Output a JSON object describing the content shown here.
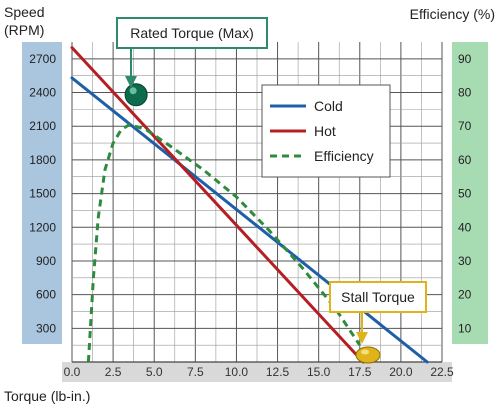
{
  "chart_data": {
    "type": "line",
    "title": "",
    "xlabel": "Torque (lb-in.)",
    "ylabel_left_line1": "Speed",
    "ylabel_left_line2": "(RPM)",
    "ylabel_right": "Efficiency (%)",
    "xlim": [
      0,
      22.5
    ],
    "ylim_left": [
      0,
      2850
    ],
    "ylim_right": [
      0,
      95
    ],
    "xticks": [
      "0.0",
      "2.5",
      "5.0",
      "7.5",
      "10.0",
      "12.5",
      "15.0",
      "17.5",
      "20.0",
      "22.5"
    ],
    "xtick_values": [
      0,
      2.5,
      5,
      7.5,
      10,
      12.5,
      15,
      17.5,
      20,
      22.5
    ],
    "yticks_left": [
      "300",
      "600",
      "900",
      "1200",
      "1500",
      "1800",
      "2100",
      "2400",
      "2700"
    ],
    "ytick_left_values": [
      300,
      600,
      900,
      1200,
      1500,
      1800,
      2100,
      2400,
      2700
    ],
    "yticks_right": [
      "10",
      "20",
      "30",
      "40",
      "50",
      "60",
      "70",
      "80",
      "90"
    ],
    "ytick_right_values": [
      10,
      20,
      30,
      40,
      50,
      60,
      70,
      80,
      90
    ],
    "grid": true,
    "legend_position": "top-right",
    "series": [
      {
        "name": "Cold",
        "color": "#1f5fa8",
        "axis": "left",
        "style": "solid",
        "x": [
          0,
          21.6
        ],
        "y": [
          2530,
          0
        ]
      },
      {
        "name": "Hot",
        "color": "#b51f24",
        "axis": "left",
        "style": "solid",
        "x": [
          0,
          17.7
        ],
        "y": [
          2800,
          0
        ]
      },
      {
        "name": "Efficiency",
        "color": "#2e8b3e",
        "axis": "right",
        "style": "dashed",
        "x": [
          1.0,
          1.3,
          1.6,
          2.0,
          2.5,
          3.0,
          3.5,
          4.5,
          6.0,
          8.0,
          10.0,
          12.0,
          14.0,
          16.0,
          17.5
        ],
        "y": [
          0,
          25,
          43,
          57,
          65,
          69,
          70.5,
          69,
          64,
          57,
          49,
          39,
          28,
          16,
          5
        ]
      }
    ],
    "annotations": [
      {
        "label": "Rated Torque (Max)",
        "x": 3.9,
        "y": 2380,
        "marker_color": "#0e6b4e"
      },
      {
        "label": "Stall Torque",
        "x": 18.0,
        "y": 0,
        "marker_color": "#e0b418"
      }
    ]
  }
}
